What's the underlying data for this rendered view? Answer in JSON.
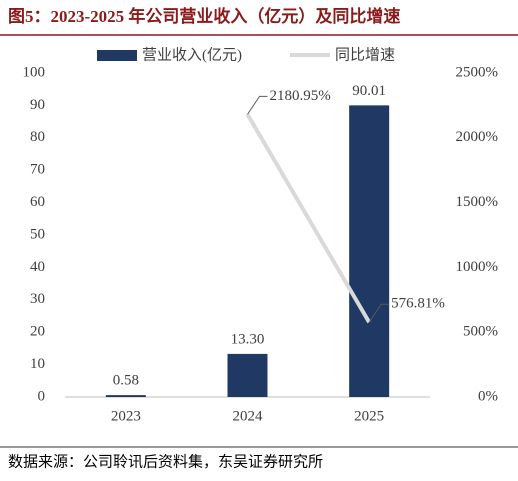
{
  "chart_data": {
    "type": "bar_line",
    "title": "图5：2023-2025 年公司营业收入（亿元）及同比增速",
    "source": "数据来源：公司聆讯后资料集，东吴证券研究所",
    "categories": [
      "2023",
      "2024",
      "2025"
    ],
    "series": [
      {
        "name": "营业收入(亿元)",
        "type": "bar",
        "color": "#1f3864",
        "values": [
          0.58,
          13.3,
          90.01
        ],
        "value_labels": [
          "0.58",
          "13.30",
          "90.01"
        ]
      },
      {
        "name": "同比增速",
        "type": "line",
        "axis": "y2",
        "color": "#d9d9d9",
        "values": [
          null,
          2180.95,
          576.81
        ],
        "value_labels": [
          null,
          "2180.95%",
          "576.81%"
        ]
      }
    ],
    "ylim": [
      0,
      100
    ],
    "yticks": [
      0,
      10,
      20,
      30,
      40,
      50,
      60,
      70,
      80,
      90,
      100
    ],
    "y2lim": [
      0,
      2500
    ],
    "y2ticks": [
      {
        "value": 0,
        "label": "0%"
      },
      {
        "value": 500,
        "label": "500%"
      },
      {
        "value": 1000,
        "label": "1000%"
      },
      {
        "value": 1500,
        "label": "1500%"
      },
      {
        "value": 2000,
        "label": "2000%"
      },
      {
        "value": 2500,
        "label": "2500%"
      }
    ],
    "grid": false,
    "legend": "top"
  }
}
